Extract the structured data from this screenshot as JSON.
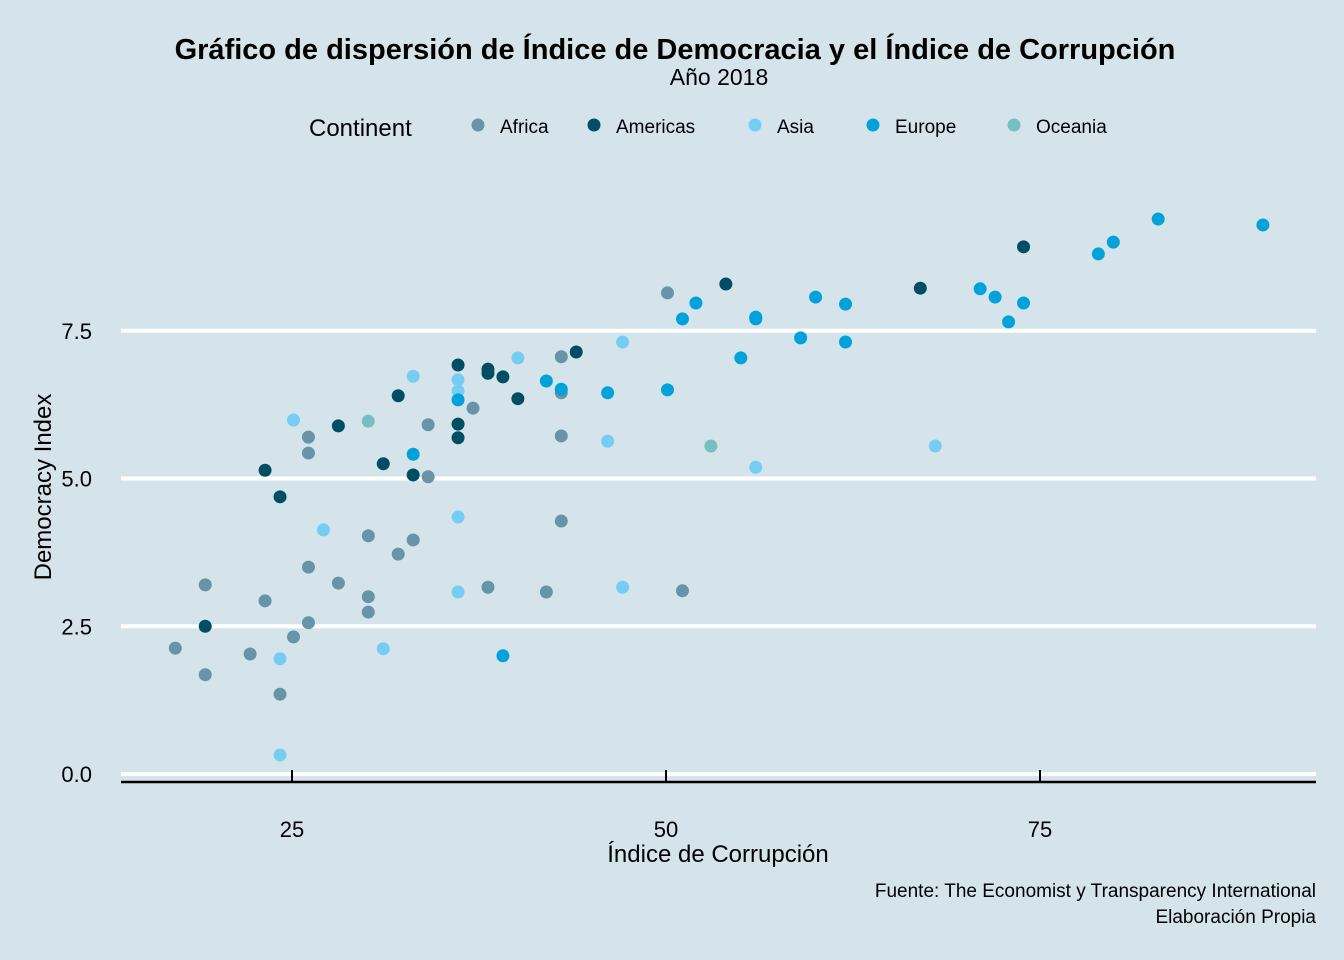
{
  "chart_data": {
    "type": "scatter",
    "title": "Gráfico de dispersión de Índice de Democracia y el Índice de Corrupción",
    "subtitle": "Año 2018",
    "xlabel": "Índice de Corrupción",
    "ylabel": "Democracy Index",
    "caption_lines": [
      "Fuente: The Economist y Transparency International",
      "Elaboración Propia"
    ],
    "xlim": [
      13.5,
      93.5
    ],
    "ylim": [
      0,
      9.6
    ],
    "x_ticks": [
      25,
      50,
      75
    ],
    "x_tick_labels": [
      "25",
      "50",
      "75"
    ],
    "y_ticks": [
      0,
      2.5,
      5,
      7.5
    ],
    "y_tick_labels": [
      "0.0",
      "2.5",
      "5.0",
      "7.5"
    ],
    "grid": "horizontal major",
    "legend": {
      "title": "Continent",
      "placement": "top"
    },
    "series": [
      {
        "name": "Africa",
        "color": "#6794A7",
        "points": [
          [
            17.2,
            2.13
          ],
          [
            19.2,
            3.2
          ],
          [
            19.2,
            1.68
          ],
          [
            22.2,
            2.03
          ],
          [
            23.2,
            2.93
          ],
          [
            24.2,
            1.35
          ],
          [
            25.1,
            2.32
          ],
          [
            26.1,
            5.7
          ],
          [
            26.1,
            5.43
          ],
          [
            26.1,
            3.5
          ],
          [
            26.1,
            2.56
          ],
          [
            28.1,
            3.23
          ],
          [
            30.1,
            4.03
          ],
          [
            30.1,
            3.0
          ],
          [
            30.1,
            2.74
          ],
          [
            32.1,
            3.72
          ],
          [
            33.1,
            3.96
          ],
          [
            34.1,
            5.91
          ],
          [
            34.1,
            5.03
          ],
          [
            37.1,
            6.19
          ],
          [
            38.1,
            3.16
          ],
          [
            42.0,
            3.08
          ],
          [
            43.0,
            7.06
          ],
          [
            43.0,
            6.45
          ],
          [
            43.0,
            5.72
          ],
          [
            43.0,
            4.28
          ],
          [
            50.1,
            8.14
          ],
          [
            51.1,
            3.1
          ]
        ]
      },
      {
        "name": "Americas",
        "color": "#014D64",
        "points": [
          [
            19.2,
            2.5
          ],
          [
            23.2,
            5.14
          ],
          [
            24.2,
            4.69
          ],
          [
            28.1,
            5.89
          ],
          [
            32.1,
            6.4
          ],
          [
            31.1,
            5.25
          ],
          [
            33.1,
            5.06
          ],
          [
            36.1,
            6.92
          ],
          [
            36.1,
            5.92
          ],
          [
            36.1,
            5.69
          ],
          [
            38.1,
            6.85
          ],
          [
            38.1,
            6.78
          ],
          [
            39.1,
            6.72
          ],
          [
            40.1,
            6.35
          ],
          [
            44.0,
            7.14
          ],
          [
            54.0,
            8.29
          ],
          [
            67.0,
            8.22
          ],
          [
            73.9,
            8.92
          ]
        ]
      },
      {
        "name": "Asia",
        "color": "#76CDF3",
        "points": [
          [
            24.2,
            0.32
          ],
          [
            24.2,
            1.95
          ],
          [
            25.1,
            5.99
          ],
          [
            27.1,
            4.13
          ],
          [
            31.1,
            2.12
          ],
          [
            33.1,
            6.73
          ],
          [
            36.1,
            6.67
          ],
          [
            36.1,
            6.48
          ],
          [
            36.1,
            4.35
          ],
          [
            36.1,
            3.08
          ],
          [
            40.1,
            7.04
          ],
          [
            46.1,
            5.63
          ],
          [
            47.1,
            7.31
          ],
          [
            47.1,
            3.16
          ],
          [
            56.0,
            5.19
          ],
          [
            68.0,
            5.55
          ]
        ]
      },
      {
        "name": "Europe",
        "color": "#01A2D9",
        "points": [
          [
            33.1,
            5.41
          ],
          [
            36.1,
            6.33
          ],
          [
            39.1,
            2.0
          ],
          [
            42.0,
            6.65
          ],
          [
            43.0,
            6.51
          ],
          [
            46.1,
            6.45
          ],
          [
            50.1,
            6.5
          ],
          [
            51.1,
            7.7
          ],
          [
            52.0,
            7.97
          ],
          [
            55.0,
            7.04
          ],
          [
            56.0,
            7.73
          ],
          [
            56.0,
            7.7
          ],
          [
            59.0,
            7.38
          ],
          [
            60.0,
            8.07
          ],
          [
            62.0,
            7.95
          ],
          [
            62.0,
            7.31
          ],
          [
            71.0,
            8.21
          ],
          [
            72.0,
            8.07
          ],
          [
            72.9,
            7.65
          ],
          [
            73.9,
            7.97
          ],
          [
            78.9,
            8.8
          ],
          [
            79.9,
            9.0
          ],
          [
            82.9,
            9.39
          ],
          [
            89.9,
            9.29
          ]
        ]
      },
      {
        "name": "Oceania",
        "color": "#76BFC0",
        "points": [
          [
            30.1,
            5.97
          ],
          [
            53.0,
            5.55
          ]
        ]
      }
    ]
  }
}
